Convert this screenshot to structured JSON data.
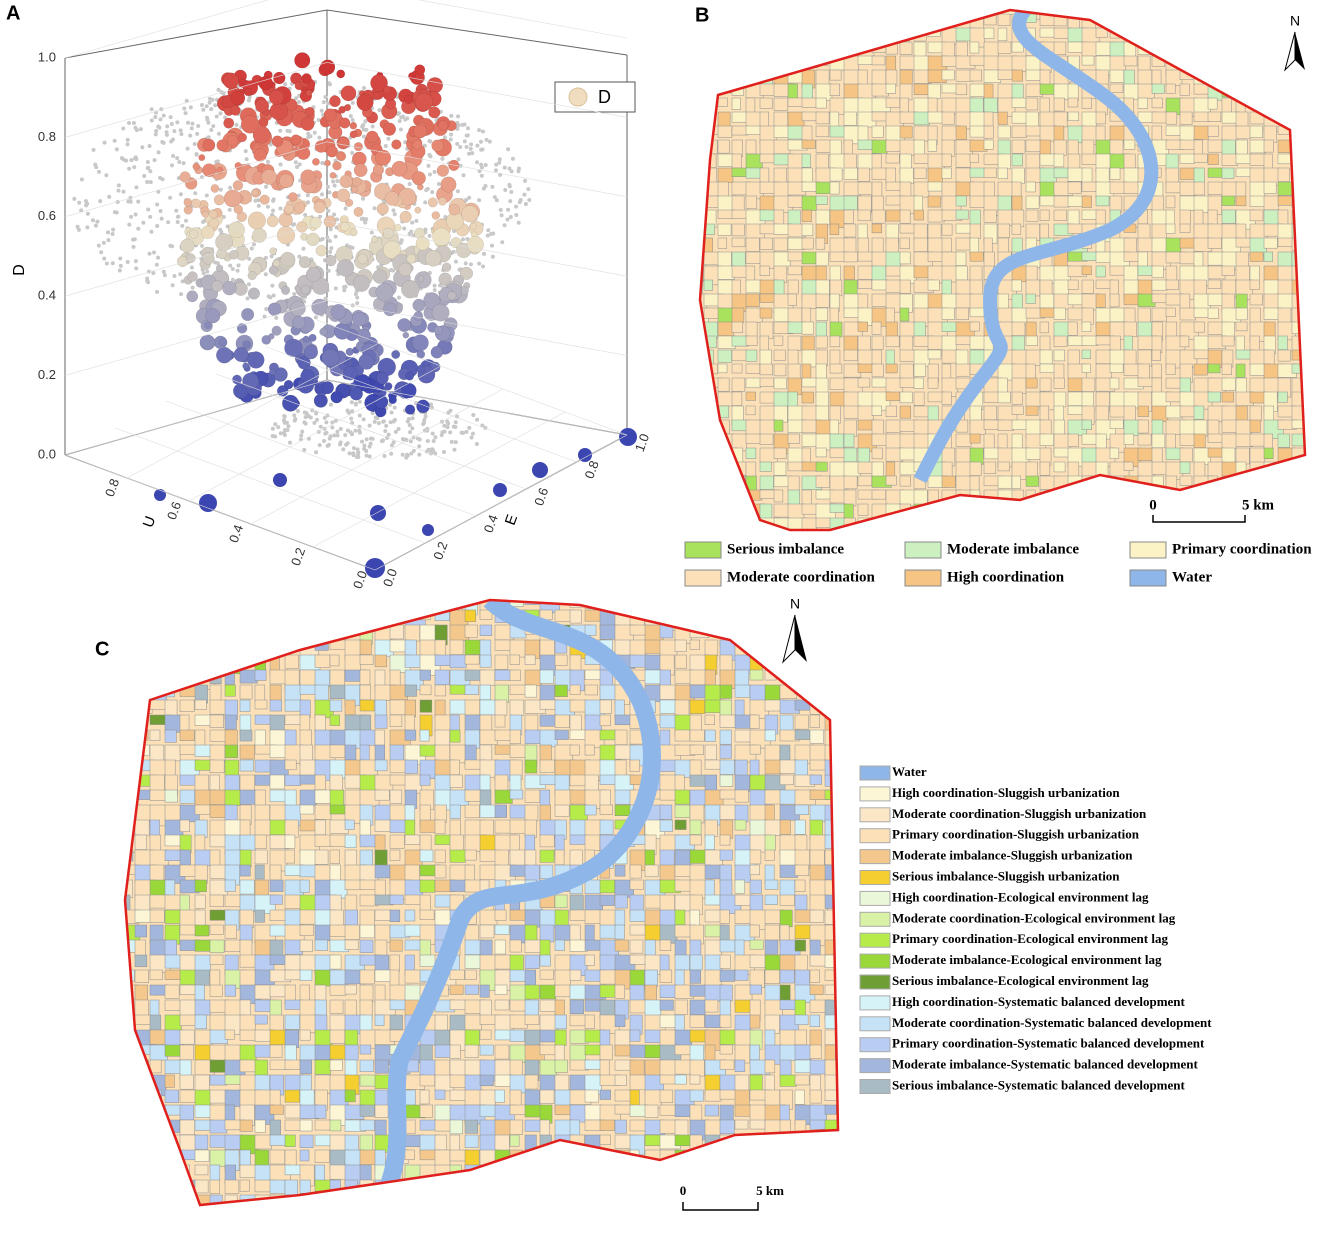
{
  "panel_a": {
    "label": "A",
    "z_title": "D",
    "u_title": "U",
    "e_title": "E",
    "legend": "D",
    "z_ticks": [
      "0.0",
      "0.2",
      "0.4",
      "0.6",
      "0.8",
      "1.0"
    ],
    "u_ticks": [
      "0.0",
      "0.2",
      "0.4",
      "0.6",
      "0.8"
    ],
    "e_ticks": [
      "0.0",
      "0.2",
      "0.4",
      "0.6",
      "0.8",
      "1.0"
    ]
  },
  "panel_b": {
    "label": "B",
    "north": "N",
    "scale_start": "0",
    "scale_end": "5 km",
    "legend": [
      {
        "label": "Serious imbalance",
        "color": "#a9e25c"
      },
      {
        "label": "Moderate imbalance",
        "color": "#cdf0c0"
      },
      {
        "label": "Primary coordination",
        "color": "#fbf3c6"
      },
      {
        "label": "Moderate coordination",
        "color": "#fbe0b8"
      },
      {
        "label": "High coordination",
        "color": "#f6c583"
      },
      {
        "label": "Water",
        "color": "#8fb6e8"
      }
    ]
  },
  "panel_c": {
    "label": "C",
    "north": "N",
    "scale_start": "0",
    "scale_end": "5 km",
    "legend": [
      {
        "label": "Water",
        "color": "#8fb6e8"
      },
      {
        "label": "High coordination-Sluggish urbanization",
        "color": "#fdf6d6"
      },
      {
        "label": "Moderate coordination-Sluggish urbanization",
        "color": "#fbe6c6"
      },
      {
        "label": "Primary coordination-Sluggish urbanization",
        "color": "#fbe0b8"
      },
      {
        "label": "Moderate imbalance-Sluggish urbanization",
        "color": "#f4c88c"
      },
      {
        "label": "Serious imbalance-Sluggish urbanization",
        "color": "#f5cf2f"
      },
      {
        "label": "High coordination-Ecological environment lag",
        "color": "#eaf7d8"
      },
      {
        "label": "Moderate coordination-Ecological environment lag",
        "color": "#d9f2a6"
      },
      {
        "label": "Primary coordination-Ecological environment lag",
        "color": "#b6ec4a"
      },
      {
        "label": "Moderate imbalance-Ecological environment lag",
        "color": "#9ad83a"
      },
      {
        "label": "Serious imbalance-Ecological environment lag",
        "color": "#6f9e34"
      },
      {
        "label": "High coordination-Systematic balanced development",
        "color": "#d6f4f8"
      },
      {
        "label": "Moderate coordination-Systematic balanced development",
        "color": "#c6e2f6"
      },
      {
        "label": "Primary coordination-Systematic balanced development",
        "color": "#b9cdf2"
      },
      {
        "label": "Moderate imbalance-Systematic balanced development",
        "color": "#a3b6dc"
      },
      {
        "label": "Serious imbalance-Systematic balanced development",
        "color": "#a9bcc6"
      }
    ]
  }
}
